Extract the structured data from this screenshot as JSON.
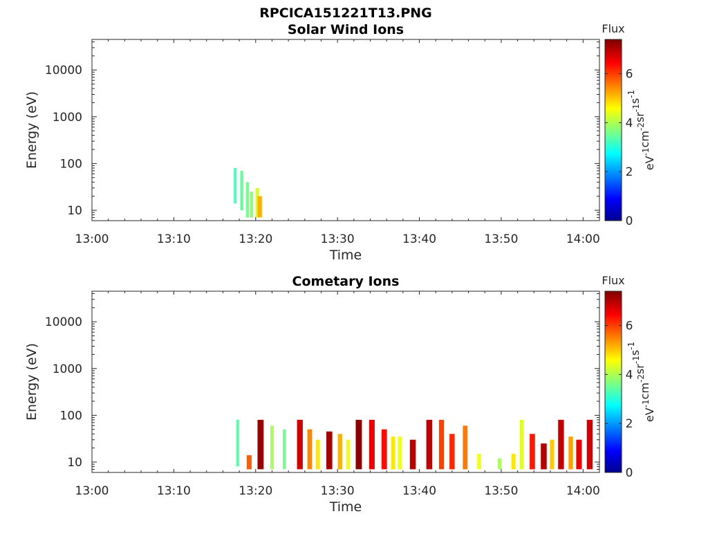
{
  "figure_title": "RPCICA151221T13.PNG",
  "colorbar": {
    "label_top": "Flux",
    "units_base": [
      "eV",
      "cm",
      "sr",
      "s"
    ],
    "units_exp": [
      "-1",
      "-2",
      "-1",
      "-1"
    ],
    "range": [
      0,
      7.4
    ],
    "ticks": [
      "0",
      "2",
      "4",
      "6"
    ],
    "colormap": "jet"
  },
  "chart_data": [
    {
      "type": "heatmap",
      "title": "Solar Wind Ions",
      "xlabel": "Time",
      "ylabel": "Energy (eV)",
      "xlim": [
        "13:00",
        "14:02"
      ],
      "ylim": [
        6,
        45000
      ],
      "yscale": "log",
      "x_ticks": [
        "13:00",
        "13:10",
        "13:20",
        "13:30",
        "13:40",
        "13:50",
        "14:00"
      ],
      "y_ticks": [
        "10",
        "100",
        "1000",
        "10000"
      ],
      "grid": false,
      "events": [
        {
          "time": "13:17.5",
          "energy_low": 14,
          "energy_high": 80,
          "flux": 3.3
        },
        {
          "time": "13:18.3",
          "energy_low": 10,
          "energy_high": 70,
          "flux": 3.5
        },
        {
          "time": "13:19.0",
          "energy_low": 7,
          "energy_high": 40,
          "flux": 3.6
        },
        {
          "time": "13:19.5",
          "energy_low": 7,
          "energy_high": 25,
          "flux": 3.8
        },
        {
          "time": "13:20.2",
          "energy_low": 7,
          "energy_high": 30,
          "flux": 4.3
        },
        {
          "time": "13:20.5",
          "energy_low": 7,
          "energy_high": 20,
          "flux": 5.2
        }
      ]
    },
    {
      "type": "heatmap",
      "title": "Cometary Ions",
      "xlabel": "Time",
      "ylabel": "Energy (eV)",
      "xlim": [
        "13:00",
        "14:02"
      ],
      "ylim": [
        6,
        45000
      ],
      "yscale": "log",
      "x_ticks": [
        "13:00",
        "13:10",
        "13:20",
        "13:30",
        "13:40",
        "13:50",
        "14:00"
      ],
      "y_ticks": [
        "10",
        "100",
        "1000",
        "10000"
      ],
      "grid": false,
      "events": [
        {
          "time": "13:17.8",
          "energy_low": 8,
          "energy_high": 80,
          "flux": 3.4
        },
        {
          "time": "13:19.2",
          "energy_low": 7,
          "energy_high": 14,
          "flux": 5.8
        },
        {
          "time": "13:20.6",
          "energy_low": 7,
          "energy_high": 80,
          "flux": 7.2
        },
        {
          "time": "13:22.0",
          "energy_low": 7,
          "energy_high": 60,
          "flux": 4.0
        },
        {
          "time": "13:23.5",
          "energy_low": 7,
          "energy_high": 50,
          "flux": 3.6
        },
        {
          "time": "13:25.4",
          "energy_low": 7,
          "energy_high": 80,
          "flux": 6.8
        },
        {
          "time": "13:26.6",
          "energy_low": 7,
          "energy_high": 50,
          "flux": 5.5
        },
        {
          "time": "13:27.6",
          "energy_low": 7,
          "energy_high": 30,
          "flux": 4.8
        },
        {
          "time": "13:29.0",
          "energy_low": 7,
          "energy_high": 45,
          "flux": 7.1
        },
        {
          "time": "13:30.3",
          "energy_low": 7,
          "energy_high": 40,
          "flux": 5.2
        },
        {
          "time": "13:31.3",
          "energy_low": 7,
          "energy_high": 30,
          "flux": 4.5
        },
        {
          "time": "13:32.6",
          "energy_low": 7,
          "energy_high": 80,
          "flux": 7.3
        },
        {
          "time": "13:34.2",
          "energy_low": 7,
          "energy_high": 80,
          "flux": 6.6
        },
        {
          "time": "13:35.7",
          "energy_low": 7,
          "energy_high": 50,
          "flux": 6.4
        },
        {
          "time": "13:36.8",
          "energy_low": 7,
          "energy_high": 35,
          "flux": 4.8
        },
        {
          "time": "13:37.6",
          "energy_low": 7,
          "energy_high": 35,
          "flux": 4.5
        },
        {
          "time": "13:39.2",
          "energy_low": 7,
          "energy_high": 30,
          "flux": 7.0
        },
        {
          "time": "13:41.2",
          "energy_low": 7,
          "energy_high": 80,
          "flux": 6.9
        },
        {
          "time": "13:42.7",
          "energy_low": 7,
          "energy_high": 80,
          "flux": 6.0
        },
        {
          "time": "13:44.0",
          "energy_low": 7,
          "energy_high": 40,
          "flux": 6.2
        },
        {
          "time": "13:45.6",
          "energy_low": 7,
          "energy_high": 60,
          "flux": 5.6
        },
        {
          "time": "13:47.3",
          "energy_low": 7,
          "energy_high": 15,
          "flux": 4.5
        },
        {
          "time": "13:49.8",
          "energy_low": 7,
          "energy_high": 12,
          "flux": 4.0
        },
        {
          "time": "13:51.5",
          "energy_low": 7,
          "energy_high": 15,
          "flux": 4.8
        },
        {
          "time": "13:52.5",
          "energy_low": 7,
          "energy_high": 80,
          "flux": 4.4
        },
        {
          "time": "13:53.8",
          "energy_low": 7,
          "energy_high": 40,
          "flux": 6.3
        },
        {
          "time": "13:55.2",
          "energy_low": 7,
          "energy_high": 25,
          "flux": 7.0
        },
        {
          "time": "13:56.2",
          "energy_low": 7,
          "energy_high": 30,
          "flux": 5.0
        },
        {
          "time": "13:57.3",
          "energy_low": 7,
          "energy_high": 80,
          "flux": 6.9
        },
        {
          "time": "13:58.5",
          "energy_low": 7,
          "energy_high": 35,
          "flux": 5.3
        },
        {
          "time": "13:59.5",
          "energy_low": 7,
          "energy_high": 30,
          "flux": 6.6
        },
        {
          "time": "14:00.8",
          "energy_low": 7,
          "energy_high": 80,
          "flux": 6.8
        }
      ]
    }
  ]
}
